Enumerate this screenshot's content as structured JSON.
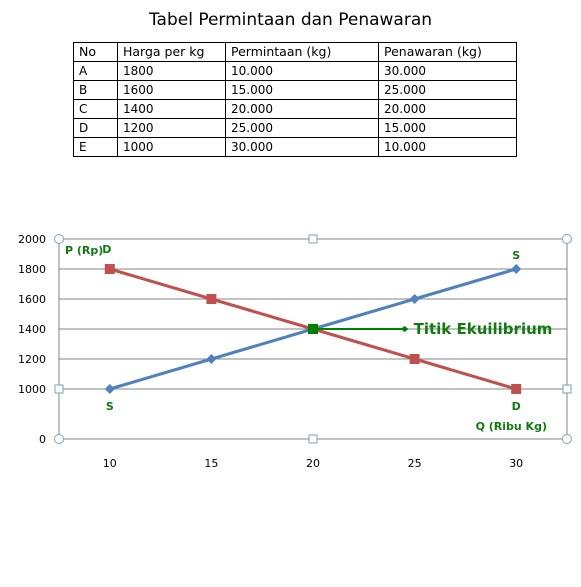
{
  "table": {
    "title": "Tabel Permintaan dan Penawaran",
    "headers": [
      "No",
      "Harga per kg",
      "Permintaan (kg)",
      "Penawaran (kg)"
    ],
    "rows": [
      [
        "A",
        "1800",
        "10.000",
        "30.000"
      ],
      [
        "B",
        "1600",
        "15.000",
        "25.000"
      ],
      [
        "C",
        "1400",
        "20.000",
        "20.000"
      ],
      [
        "D",
        "1200",
        "25.000",
        "15.000"
      ],
      [
        "E",
        "1000",
        "30.000",
        "10.000"
      ]
    ]
  },
  "chart_data": {
    "type": "line",
    "x_ticks": [
      10,
      15,
      20,
      25,
      30
    ],
    "y_ticks": [
      0,
      1000,
      1200,
      1400,
      1600,
      1800,
      2000
    ],
    "ylabel": "P (Rp)",
    "xlabel": "Q (Ribu Kg)",
    "grid": "horizontal",
    "series": [
      {
        "id": "demand",
        "color": "#c0504d",
        "marker": "square",
        "points": [
          [
            10,
            1800
          ],
          [
            15,
            1600
          ],
          [
            20,
            1400
          ],
          [
            25,
            1200
          ],
          [
            30,
            1000
          ]
        ],
        "start_label": "D",
        "end_label": "D"
      },
      {
        "id": "supply",
        "color": "#4f81bd",
        "marker": "diamond",
        "points": [
          [
            10,
            1000
          ],
          [
            15,
            1200
          ],
          [
            20,
            1400
          ],
          [
            25,
            1600
          ],
          [
            30,
            1800
          ]
        ],
        "start_label": "S",
        "end_label": "S"
      }
    ],
    "equilibrium": {
      "x": 20,
      "y": 1400,
      "label": "Titik Ekuilibrium",
      "color": "#008000",
      "arrow_to_x": 25
    }
  }
}
